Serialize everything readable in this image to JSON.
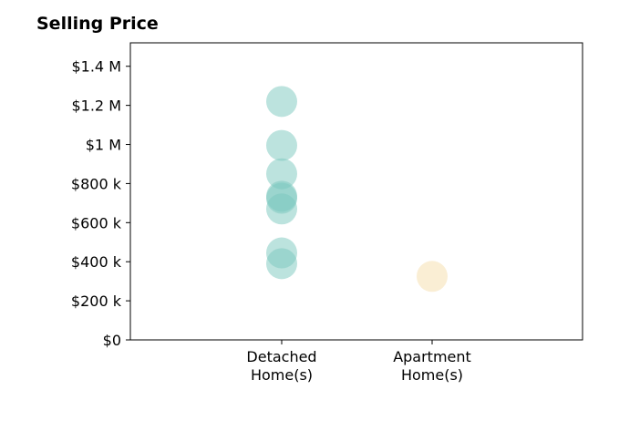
{
  "chart_data": {
    "type": "scatter",
    "title": "Selling Price",
    "xlabel": "",
    "ylabel": "",
    "categories": [
      [
        "Detached",
        "Home(s)"
      ],
      [
        "Apartment",
        "Home(s)"
      ]
    ],
    "y_ticks": [
      {
        "value": 0,
        "label": "$0"
      },
      {
        "value": 200000,
        "label": "$200 k"
      },
      {
        "value": 400000,
        "label": "$400 k"
      },
      {
        "value": 600000,
        "label": "$600 k"
      },
      {
        "value": 800000,
        "label": "$800 k"
      },
      {
        "value": 1000000,
        "label": "$1 M"
      },
      {
        "value": 1200000,
        "label": "$1.2 M"
      },
      {
        "value": 1400000,
        "label": "$1.4 M"
      }
    ],
    "ylim": [
      0,
      1520000
    ],
    "grid": false,
    "series": [
      {
        "category_index": 0,
        "color": "#7ac7be",
        "values": [
          1220000,
          995000,
          850000,
          735000,
          725000,
          670000,
          445000,
          390000
        ]
      },
      {
        "category_index": 1,
        "color": "#f6deaa",
        "values": [
          325000
        ]
      }
    ]
  }
}
